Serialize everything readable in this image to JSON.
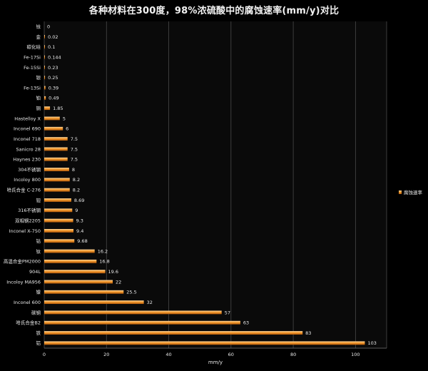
{
  "chart_data": {
    "type": "bar",
    "orientation": "horizontal",
    "title": "各种材料在300度，98%浓硫酸中的腐蚀速率(mm/y)对比",
    "xlabel": "mm/y",
    "ylabel": "",
    "xlim": [
      0,
      110
    ],
    "xticks": [
      "0",
      "20",
      "40",
      "60",
      "80",
      "100"
    ],
    "grid": "vertical",
    "legend_position": "right",
    "colors": {
      "bar": "#f39a2e",
      "bar_light": "#ffd9a0",
      "bar_dark": "#b35a0c",
      "background": "#000000",
      "grid": "#4a4a4a"
    },
    "categories": [
      "铝",
      "铁",
      "哈氏合金B2",
      "碳钢",
      "Inconel 600",
      "镍",
      "Incoloy MA956",
      "904L",
      "高温合金PM2000",
      "钛",
      "钴",
      "Inconel X-750",
      "双相钢2205",
      "316不锈钢",
      "钽",
      "哈氏合金 C-276",
      "Incoloy 800",
      "304不锈钢",
      "Haynes 230",
      "Sanicro 28",
      "Inconel 718",
      "Inconel 690",
      "Hastelloy X",
      "铜",
      "铂",
      "Fe-13Si",
      "银",
      "Fe-15Si",
      "Fe-17Si",
      "碳化硅",
      "金",
      "铱"
    ],
    "value_labels": [
      "103",
      "83",
      "63",
      "57",
      "32",
      "25.5",
      "22",
      "19.6",
      "16.8",
      "16.2",
      "9.68",
      "9.4",
      "9.3",
      "9",
      "8.69",
      "8.2",
      "8.2",
      "8",
      "7.5",
      "7.5",
      "7.5",
      "6",
      "5",
      "1.85",
      "0.49",
      "0.39",
      "0.25",
      "0.23",
      "0.144",
      "0.1",
      "0.02",
      "0"
    ],
    "series": [
      {
        "name": "腐蚀速率",
        "values": [
          103,
          83,
          63,
          57,
          32,
          25.5,
          22,
          19.6,
          16.8,
          16.2,
          9.68,
          9.4,
          9.3,
          9,
          8.69,
          8.2,
          8.2,
          8,
          7.5,
          7.5,
          7.5,
          6,
          5,
          1.85,
          0.49,
          0.39,
          0.25,
          0.23,
          0.144,
          0.1,
          0.02,
          0
        ]
      }
    ]
  }
}
